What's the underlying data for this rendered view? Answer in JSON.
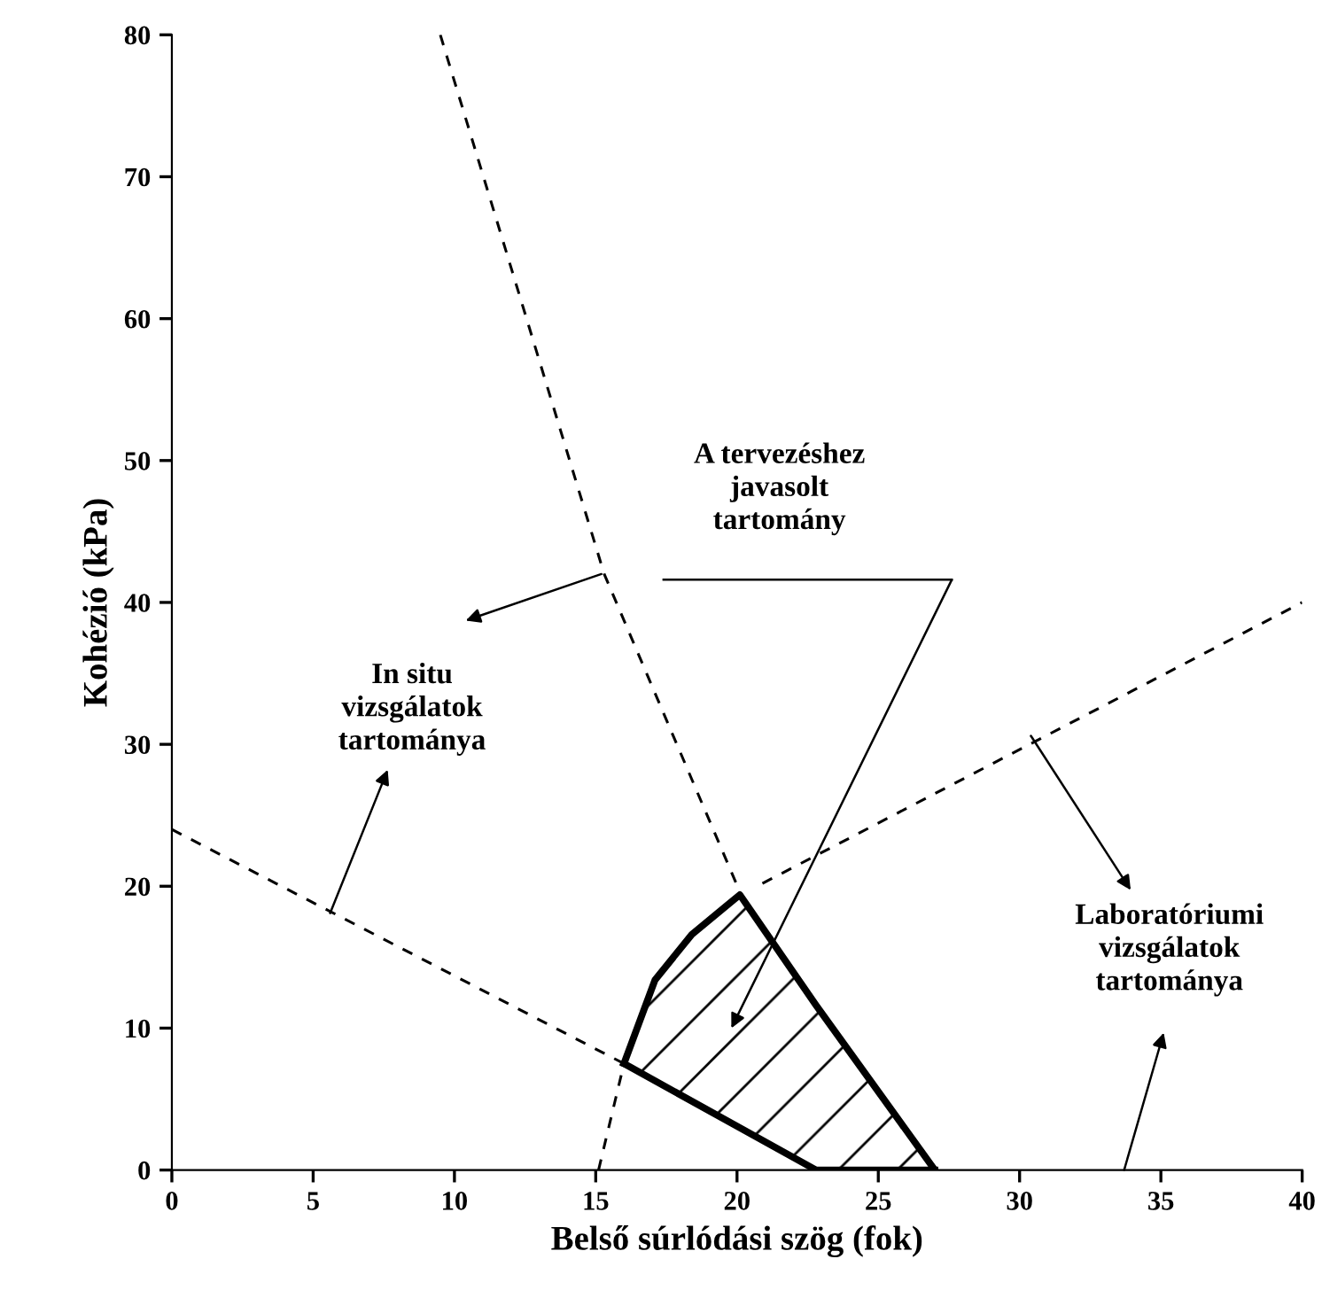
{
  "chart_data": {
    "type": "line",
    "xlabel": "Belső súrlódási szög (fok)",
    "ylabel": "Kohézió (kPa)",
    "xlim": [
      0,
      40
    ],
    "ylim": [
      0,
      80
    ],
    "xticks": [
      0,
      5,
      10,
      15,
      20,
      25,
      30,
      35,
      40
    ],
    "yticks": [
      0,
      10,
      20,
      30,
      40,
      50,
      60,
      70,
      80
    ],
    "grid": false,
    "series": [
      {
        "line_style": "dashed",
        "color": "#000000",
        "x": [
          9.5,
          15.3,
          20.1
        ],
        "values": [
          80,
          42,
          19.6
        ]
      },
      {
        "line_style": "dashed",
        "color": "#000000",
        "x": [
          15.1,
          16
        ],
        "values": [
          0,
          7.5
        ]
      },
      {
        "line_style": "dashed",
        "color": "#000000",
        "x": [
          0,
          16
        ],
        "values": [
          24,
          7.5
        ]
      },
      {
        "line_style": "dashed",
        "color": "#000000",
        "x": [
          20.9,
          40
        ],
        "values": [
          20.2,
          40
        ]
      },
      {
        "line_style": "solid",
        "color": "#000000",
        "x": [
          16,
          17.1,
          18.4,
          20.1,
          22.8,
          27
        ],
        "values": [
          7.5,
          13.4,
          16.6,
          19.4,
          11.6,
          0
        ]
      },
      {
        "line_style": "solid",
        "color": "#000000",
        "x": [
          16,
          22.8,
          27
        ],
        "values": [
          7.5,
          0,
          0
        ]
      }
    ],
    "annotations": [
      "A tervezéshez\njavasolt\ntartomány",
      {
        "text": "In situ\nvizsgálatok\ntartománya",
        "x": 5.6,
        "y": 18.1
      },
      {
        "text": "Laboratóriumi\nvizsgálatok\ntartománya",
        "x": 30.4,
        "y": 30.6
      }
    ]
  }
}
